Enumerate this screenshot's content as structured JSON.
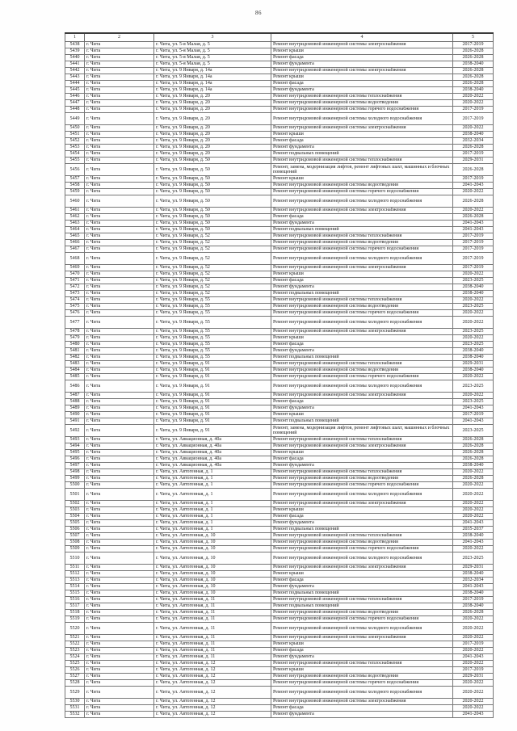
{
  "page": {
    "number": "86"
  },
  "table": {
    "headers": [
      "1",
      "2",
      "3",
      "4",
      "5"
    ],
    "rows": [
      {
        "num": "5438",
        "city": "г. Чита",
        "address": "г. Чита, ул. 5-я Малая, д. 5",
        "work": "Ремонт внутридомовой инженерной системы электроснабжения",
        "years": "2017-2019"
      },
      {
        "num": "5439",
        "city": "г. Чита",
        "address": "г. Чита, ул. 5-я Малая, д. 5",
        "work": "Ремонт крыши",
        "years": "2026-2028"
      },
      {
        "num": "5440",
        "city": "г. Чита",
        "address": "г. Чита, ул. 5-я Малая, д. 5",
        "work": "Ремонт фасада",
        "years": "2026-2028"
      },
      {
        "num": "5441",
        "city": "г. Чита",
        "address": "г. Чита, ул. 5-я Малая, д. 5",
        "work": "Ремонт фундамента",
        "years": "2038-2040"
      },
      {
        "num": "5442",
        "city": "г. Чита",
        "address": "г. Чита, ул. 9 Января, д. 14а",
        "work": "Ремонт внутридомовой инженерной системы электроснабжения",
        "years": "2026-2028"
      },
      {
        "num": "5443",
        "city": "г. Чита",
        "address": "г. Чита, ул. 9 Января, д. 14а",
        "work": "Ремонт крыши",
        "years": "2026-2028"
      },
      {
        "num": "5444",
        "city": "г. Чита",
        "address": "г. Чита, ул. 9 Января, д. 14а",
        "work": "Ремонт фасада",
        "years": "2026-2028"
      },
      {
        "num": "5445",
        "city": "г. Чита",
        "address": "г. Чита, ул. 9 Января, д. 14а",
        "work": "Ремонт фундамента",
        "years": "2038-2040"
      },
      {
        "num": "5446",
        "city": "г. Чита",
        "address": "г. Чита, ул. 9 Января, д. 20",
        "work": "Ремонт внутридомовой инженерной системы теплоснабжения",
        "years": "2020-2022"
      },
      {
        "num": "5447",
        "city": "г. Чита",
        "address": "г. Чита, ул. 9 Января, д. 20",
        "work": "Ремонт внутридомовой инженерной системы водоотведения",
        "years": "2020-2022"
      },
      {
        "num": "5448",
        "city": "г. Чита",
        "address": "г. Чита, ул. 9 Января, д. 20",
        "work": "Ремонт внутридомовой инженерной системы горячего водоснабжения",
        "years": "2017-2019"
      },
      {
        "num": "5449",
        "city": "г. Чита",
        "address": "г. Чита, ул. 9 Января, д. 20",
        "work": "Ремонт внутридомовой инженерной системы холодного водоснабжения",
        "years": "2017-2019"
      },
      {
        "num": "5450",
        "city": "г. Чита",
        "address": "г. Чита, ул. 9 Января, д. 20",
        "work": "Ремонт внутридомовой инженерной системы электроснабжения",
        "years": "2020-2022"
      },
      {
        "num": "5451",
        "city": "г. Чита",
        "address": "г. Чита, ул. 9 Января, д. 20",
        "work": "Ремонт крыши",
        "years": "2038-2040"
      },
      {
        "num": "5452",
        "city": "г. Чита",
        "address": "г. Чита, ул. 9 Января, д. 20",
        "work": "Ремонт фасада",
        "years": "2032-2034"
      },
      {
        "num": "5453",
        "city": "г. Чита",
        "address": "г. Чита, ул. 9 Января, д. 20",
        "work": "Ремонт фундамента",
        "years": "2026-2028"
      },
      {
        "num": "5454",
        "city": "г. Чита",
        "address": "г. Чита, ул. 9 Января, д. 20",
        "work": "Ремонт подвальных помещений",
        "years": "2017-2019"
      },
      {
        "num": "5455",
        "city": "г. Чита",
        "address": "г. Чита, ул. 9 Января, д. 50",
        "work": "Ремонт внутридомовой инженерной системы теплоснабжения",
        "years": "2029-2031"
      },
      {
        "num": "5456",
        "city": "г. Чита",
        "address": "г. Чита, ул. 9 Января, д. 50",
        "work": "Ремонт, замена, модернизация лифтов, ремонт лифтовых шахт, машинных и блочных помещений",
        "years": "2026-2028"
      },
      {
        "num": "5457",
        "city": "г. Чита",
        "address": "г. Чита, ул. 9 Января, д. 50",
        "work": "Ремонт крыши",
        "years": "2017-2019"
      },
      {
        "num": "5458",
        "city": "г. Чита",
        "address": "г. Чита, ул. 9 Января, д. 50",
        "work": "Ремонт внутридомовой инженерной системы водоотведения",
        "years": "2041-2043"
      },
      {
        "num": "5459",
        "city": "г. Чита",
        "address": "г. Чита, ул. 9 Января, д. 50",
        "work": "Ремонт внутридомовой инженерной системы горячего водоснабжения",
        "years": "2020-2022"
      },
      {
        "num": "5460",
        "city": "г. Чита",
        "address": "г. Чита, ул. 9 Января, д. 50",
        "work": "Ремонт внутридомовой инженерной системы холодного водоснабжения",
        "years": "2026-2028"
      },
      {
        "num": "5461",
        "city": "г. Чита",
        "address": "г. Чита, ул. 9 Января, д. 50",
        "work": "Ремонт внутридомовой инженерной системы электроснабжения",
        "years": "2020-2022"
      },
      {
        "num": "5462",
        "city": "г. Чита",
        "address": "г. Чита, ул. 9 Января, д. 50",
        "work": "Ремонт фасада",
        "years": "2026-2028"
      },
      {
        "num": "5463",
        "city": "г. Чита",
        "address": "г. Чита, ул. 9 Января, д. 50",
        "work": "Ремонт фундамента",
        "years": "2041-2043"
      },
      {
        "num": "5464",
        "city": "г. Чита",
        "address": "г. Чита, ул. 9 Января, д. 50",
        "work": "Ремонт подвальных помещений",
        "years": "2041-2043"
      },
      {
        "num": "5465",
        "city": "г. Чита",
        "address": "г. Чита, ул. 9 Января, д. 52",
        "work": "Ремонт внутридомовой инженерной системы теплоснабжения",
        "years": "2017-2019"
      },
      {
        "num": "5466",
        "city": "г. Чита",
        "address": "г. Чита, ул. 9 Января, д. 52",
        "work": "Ремонт внутридомовой инженерной системы водоотведения",
        "years": "2017-2019"
      },
      {
        "num": "5467",
        "city": "г. Чита",
        "address": "г. Чита, ул. 9 Января, д. 52",
        "work": "Ремонт внутридомовой инженерной системы горячего водоснабжения",
        "years": "2017-2019"
      },
      {
        "num": "5468",
        "city": "г. Чита",
        "address": "г. Чита, ул. 9 Января, д. 52",
        "work": "Ремонт внутридомовой инженерной системы холодного водоснабжения",
        "years": "2017-2019"
      },
      {
        "num": "5469",
        "city": "г. Чита",
        "address": "г. Чита, ул. 9 Января, д. 52",
        "work": "Ремонт внутридомовой инженерной системы электроснабжения",
        "years": "2017-2019"
      },
      {
        "num": "5470",
        "city": "г. Чита",
        "address": "г. Чита, ул. 9 Января, д. 52",
        "work": "Ремонт крыши",
        "years": "2020-2022"
      },
      {
        "num": "5471",
        "city": "г. Чита",
        "address": "г. Чита, ул. 9 Января, д. 52",
        "work": "Ремонт фасада",
        "years": "2023-2025"
      },
      {
        "num": "5472",
        "city": "г. Чита",
        "address": "г. Чита, ул. 9 Января, д. 52",
        "work": "Ремонт фундамента",
        "years": "2038-2040"
      },
      {
        "num": "5473",
        "city": "г. Чита",
        "address": "г. Чита, ул. 9 Января, д. 52",
        "work": "Ремонт подвальных помещений",
        "years": "2038-2040"
      },
      {
        "num": "5474",
        "city": "г. Чита",
        "address": "г. Чита, ул. 9 Января, д. 55",
        "work": "Ремонт внутридомовой инженерной системы теплоснабжения",
        "years": "2020-2022"
      },
      {
        "num": "5475",
        "city": "г. Чита",
        "address": "г. Чита, ул. 9 Января, д. 55",
        "work": "Ремонт внутридомовой инженерной системы водоотведения",
        "years": "2023-2025"
      },
      {
        "num": "5476",
        "city": "г. Чита",
        "address": "г. Чита, ул. 9 Января, д. 55",
        "work": "Ремонт внутридомовой инженерной системы горячего водоснабжения",
        "years": "2020-2022"
      },
      {
        "num": "5477",
        "city": "г. Чита",
        "address": "г. Чита, ул. 9 Января, д. 55",
        "work": "Ремонт внутридомовой инженерной системы холодного водоснабжения",
        "years": "2020-2022"
      },
      {
        "num": "5478",
        "city": "г. Чита",
        "address": "г. Чита, ул. 9 Января, д. 55",
        "work": "Ремонт внутридомовой инженерной системы электроснабжения",
        "years": "2023-2025"
      },
      {
        "num": "5479",
        "city": "г. Чита",
        "address": "г. Чита, ул. 9 Января, д. 55",
        "work": "Ремонт крыши",
        "years": "2020-2022"
      },
      {
        "num": "5480",
        "city": "г. Чита",
        "address": "г. Чита, ул. 9 Января, д. 55",
        "work": "Ремонт фасада",
        "years": "2023-2025"
      },
      {
        "num": "5481",
        "city": "г. Чита",
        "address": "г. Чита, ул. 9 Января, д. 55",
        "work": "Ремонт фундамента",
        "years": "2038-2040"
      },
      {
        "num": "5482",
        "city": "г. Чита",
        "address": "г. Чита, ул. 9 Января, д. 55",
        "work": "Ремонт подвальных помещений",
        "years": "2038-2040"
      },
      {
        "num": "5483",
        "city": "г. Чита",
        "address": "г. Чита, ул. 9 Января, д. 91",
        "work": "Ремонт внутридомовой инженерной системы теплоснабжения",
        "years": "2029-2031"
      },
      {
        "num": "5484",
        "city": "г. Чита",
        "address": "г. Чита, ул. 9 Января, д. 91",
        "work": "Ремонт внутридомовой инженерной системы водоотведения",
        "years": "2038-2040"
      },
      {
        "num": "5485",
        "city": "г. Чита",
        "address": "г. Чита, ул. 9 Января, д. 91",
        "work": "Ремонт внутридомовой инженерной системы горячего водоснабжения",
        "years": "2020-2022"
      },
      {
        "num": "5486",
        "city": "г. Чита",
        "address": "г. Чита, ул. 9 Января, д. 91",
        "work": "Ремонт внутридомовой инженерной системы холодного водоснабжения",
        "years": "2023-2025"
      },
      {
        "num": "5487",
        "city": "г. Чита",
        "address": "г. Чита, ул. 9 Января, д. 91",
        "work": "Ремонт внутридомовой инженерной системы электроснабжения",
        "years": "2020-2022"
      },
      {
        "num": "5488",
        "city": "г. Чита",
        "address": "г. Чита, ул. 9 Января, д. 91",
        "work": "Ремонт фасада",
        "years": "2023-2025"
      },
      {
        "num": "5489",
        "city": "г. Чита",
        "address": "г. Чита, ул. 9 Января, д. 91",
        "work": "Ремонт фундамента",
        "years": "2041-2043"
      },
      {
        "num": "5490",
        "city": "г. Чита",
        "address": "г. Чита, ул. 9 Января, д. 91",
        "work": "Ремонт крыши",
        "years": "2017-2019"
      },
      {
        "num": "5491",
        "city": "г. Чита",
        "address": "г. Чита, ул. 9 Января, д. 91",
        "work": "Ремонт подвальных помещений",
        "years": "2041-2043"
      },
      {
        "num": "5492",
        "city": "г. Чита",
        "address": "г. Чита, ул. 9 Января, д. 91",
        "work": "Ремонт, замена, модернизация лифтов, ремонт лифтовых шахт, машинных и блочных помещений",
        "years": "2023-2025"
      },
      {
        "num": "5493",
        "city": "г. Чита",
        "address": "г. Чита, ул. Авиационная, д. 40а",
        "work": "Ремонт внутридомовой инженерной системы теплоснабжения",
        "years": "2026-2028"
      },
      {
        "num": "5494",
        "city": "г. Чита",
        "address": "г. Чита, ул. Авиационная, д. 40а",
        "work": "Ремонт внутридомовой инженерной системы электроснабжения",
        "years": "2026-2028"
      },
      {
        "num": "5495",
        "city": "г. Чита",
        "address": "г. Чита, ул. Авиационная, д. 40а",
        "work": "Ремонт крыши",
        "years": "2026-2028"
      },
      {
        "num": "5496",
        "city": "г. Чита",
        "address": "г. Чита, ул. Авиационная, д. 40а",
        "work": "Ремонт фасада",
        "years": "2026-2028"
      },
      {
        "num": "5497",
        "city": "г. Чита",
        "address": "г. Чита, ул. Авиационная, д. 40а",
        "work": "Ремонт фундамента",
        "years": "2038-2040"
      },
      {
        "num": "5498",
        "city": "г. Чита",
        "address": "г. Чита, ул. Автогенная, д. 1",
        "work": "Ремонт внутридомовой инженерной системы теплоснабжения",
        "years": "2020-2022"
      },
      {
        "num": "5499",
        "city": "г. Чита",
        "address": "г. Чита, ул. Автогенная, д. 1",
        "work": "Ремонт внутридомовой инженерной системы водоотведения",
        "years": "2026-2028"
      },
      {
        "num": "5500",
        "city": "г. Чита",
        "address": "г. Чита, ул. Автогенная, д. 1",
        "work": "Ремонт внутридомовой инженерной системы горячего водоснабжения",
        "years": "2020-2022"
      },
      {
        "num": "5501",
        "city": "г. Чита",
        "address": "г. Чита, ул. Автогенная, д. 1",
        "work": "Ремонт внутридомовой инженерной системы холодного водоснабжения",
        "years": "2020-2022"
      },
      {
        "num": "5502",
        "city": "г. Чита",
        "address": "г. Чита, ул. Автогенная, д. 1",
        "work": "Ремонт внутридомовой инженерной системы электроснабжения",
        "years": "2020-2022"
      },
      {
        "num": "5503",
        "city": "г. Чита",
        "address": "г. Чита, ул. Автогенная, д. 1",
        "work": "Ремонт крыши",
        "years": "2020-2022"
      },
      {
        "num": "5504",
        "city": "г. Чита",
        "address": "г. Чита, ул. Автогенная, д. 1",
        "work": "Ремонт фасада",
        "years": "2020-2022"
      },
      {
        "num": "5505",
        "city": "г. Чита",
        "address": "г. Чита, ул. Автогенная, д. 1",
        "work": "Ремонт фундамента",
        "years": "2041-2043"
      },
      {
        "num": "5506",
        "city": "г. Чита",
        "address": "г. Чита, ул. Автогенная, д. 1",
        "work": "Ремонт подвальных помещений",
        "years": "2035-2037"
      },
      {
        "num": "5507",
        "city": "г. Чита",
        "address": "г. Чита, ул. Автогенная, д. 10",
        "work": "Ремонт внутридомовой инженерной системы теплоснабжения",
        "years": "2038-2040"
      },
      {
        "num": "5508",
        "city": "г. Чита",
        "address": "г. Чита, ул. Автогенная, д. 10",
        "work": "Ремонт внутридомовой инженерной системы водоотведения",
        "years": "2041-2043"
      },
      {
        "num": "5509",
        "city": "г. Чита",
        "address": "г. Чита, ул. Автогенная, д. 10",
        "work": "Ремонт внутридомовой инженерной системы горячего водоснабжения",
        "years": "2020-2022"
      },
      {
        "num": "5510",
        "city": "г. Чита",
        "address": "г. Чита, ул. Автогенная, д. 10",
        "work": "Ремонт внутридомовой инженерной системы холодного водоснабжения",
        "years": "2023-2025"
      },
      {
        "num": "5511",
        "city": "г. Чита",
        "address": "г. Чита, ул. Автогенная, д. 10",
        "work": "Ремонт внутридомовой инженерной системы электроснабжения",
        "years": "2029-2031"
      },
      {
        "num": "5512",
        "city": "г. Чита",
        "address": "г. Чита, ул. Автогенная, д. 10",
        "work": "Ремонт крыши",
        "years": "2038-2040"
      },
      {
        "num": "5513",
        "city": "г. Чита",
        "address": "г. Чита, ул. Автогенная, д. 10",
        "work": "Ремонт фасада",
        "years": "2032-2034"
      },
      {
        "num": "5514",
        "city": "г. Чита",
        "address": "г. Чита, ул. Автогенная, д. 10",
        "work": "Ремонт фундамента",
        "years": "2041-2043"
      },
      {
        "num": "5515",
        "city": "г. Чита",
        "address": "г. Чита, ул. Автогенная, д. 10",
        "work": "Ремонт подвальных помещений",
        "years": "2038-2040"
      },
      {
        "num": "5516",
        "city": "г. Чита",
        "address": "г. Чита, ул. Автогенная, д. 11",
        "work": "Ремонт внутридомовой инженерной системы теплоснабжения",
        "years": "2017-2019"
      },
      {
        "num": "5517",
        "city": "г. Чита",
        "address": "г. Чита, ул. Автогенная, д. 11",
        "work": "Ремонт подвальных помещений",
        "years": "2038-2040"
      },
      {
        "num": "5518",
        "city": "г. Чита",
        "address": "г. Чита, ул. Автогенная, д. 11",
        "work": "Ремонт внутридомовой инженерной системы водоотведения",
        "years": "2026-2028"
      },
      {
        "num": "5519",
        "city": "г. Чита",
        "address": "г. Чита, ул. Автогенная, д. 11",
        "work": "Ремонт внутридомовой инженерной системы горячего водоснабжения",
        "years": "2020-2022"
      },
      {
        "num": "5520",
        "city": "г. Чита",
        "address": "г. Чита, ул. Автогенная, д. 11",
        "work": "Ремонт внутридомовой инженерной системы холодного водоснабжения",
        "years": "2020-2022"
      },
      {
        "num": "5521",
        "city": "г. Чита",
        "address": "г. Чита, ул. Автогенная, д. 11",
        "work": "Ремонт внутридомовой инженерной системы электроснабжения",
        "years": "2020-2022"
      },
      {
        "num": "5522",
        "city": "г. Чита",
        "address": "г. Чита, ул. Автогенная, д. 11",
        "work": "Ремонт крыши",
        "years": "2017-2019"
      },
      {
        "num": "5523",
        "city": "г. Чита",
        "address": "г. Чита, ул. Автогенная, д. 11",
        "work": "Ремонт фасада",
        "years": "2020-2022"
      },
      {
        "num": "5524",
        "city": "г. Чита",
        "address": "г. Чита, ул. Автогенная, д. 11",
        "work": "Ремонт фундамента",
        "years": "2041-2043"
      },
      {
        "num": "5525",
        "city": "г. Чита",
        "address": "г. Чита, ул. Автогенная, д. 12",
        "work": "Ремонт внутридомовой инженерной системы теплоснабжения",
        "years": "2020-2022"
      },
      {
        "num": "5526",
        "city": "г. Чита",
        "address": "г. Чита, ул. Автогенная, д. 12",
        "work": "Ремонт крыши",
        "years": "2017-2019"
      },
      {
        "num": "5527",
        "city": "г. Чита",
        "address": "г. Чита, ул. Автогенная, д. 12",
        "work": "Ремонт внутридомовой инженерной системы водоотведения",
        "years": "2029-2031"
      },
      {
        "num": "5528",
        "city": "г. Чита",
        "address": "г. Чита, ул. Автогенная, д. 12",
        "work": "Ремонт внутридомовой инженерной системы горячего водоснабжения",
        "years": "2020-2022"
      },
      {
        "num": "5529",
        "city": "г. Чита",
        "address": "г. Чита, ул. Автогенная, д. 12",
        "work": "Ремонт внутридомовой инженерной системы холодного водоснабжения",
        "years": "2020-2022"
      },
      {
        "num": "5530",
        "city": "г. Чита",
        "address": "г. Чита, ул. Автогенная, д. 12",
        "work": "Ремонт внутридомовой инженерной системы электроснабжения",
        "years": "2020-2022"
      },
      {
        "num": "5531",
        "city": "г. Чита",
        "address": "г. Чита, ул. Автогенная, д. 12",
        "work": "Ремонт фасада",
        "years": "2020-2022"
      },
      {
        "num": "5532",
        "city": "г. Чита",
        "address": "г. Чита, ул. Автогенная, д. 12",
        "work": "Ремонт фундамента",
        "years": "2041-2043"
      }
    ]
  }
}
